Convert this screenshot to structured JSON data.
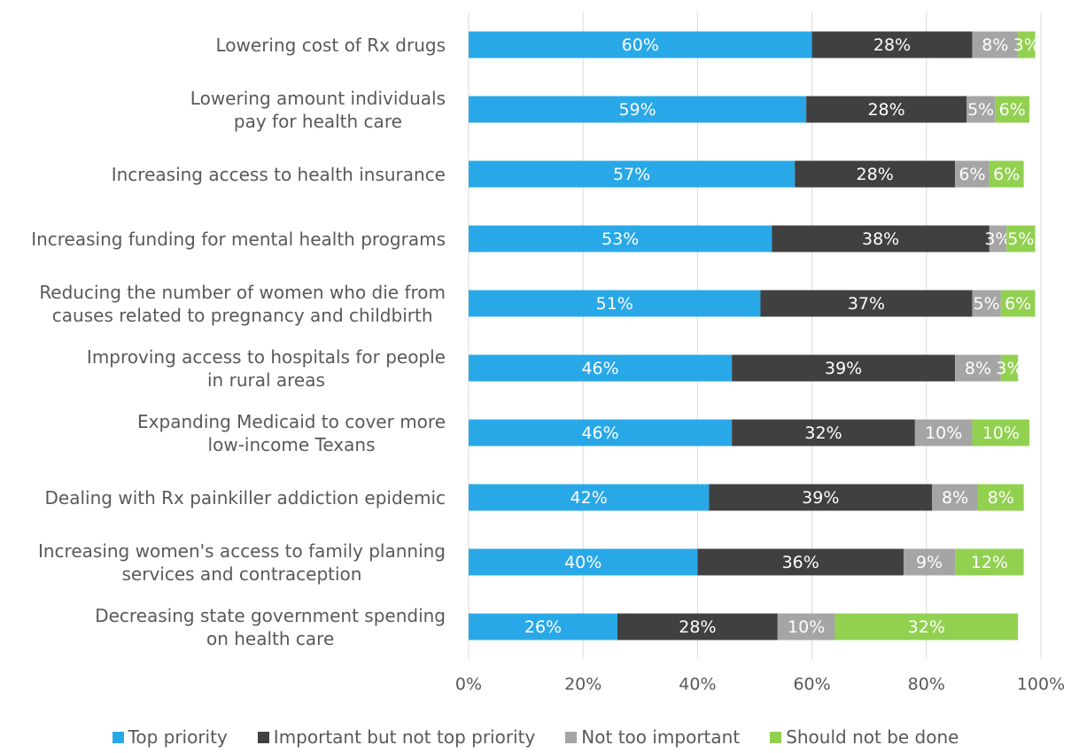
{
  "chart_data": {
    "type": "stacked-bar-horizontal",
    "categories": [
      "Lowering cost of Rx drugs",
      "Lowering amount individuals\npay for health care",
      "Increasing access to health insurance",
      "Increasing funding for mental health programs",
      "Reducing the number of women who die from\ncauses related to pregnancy and childbirth",
      "Improving access to hospitals for people\nin rural areas",
      "Expanding Medicaid to cover more\nlow-income Texans",
      "Dealing with Rx painkiller addiction epidemic",
      "Increasing women's access to family planning\nservices and contraception",
      "Decreasing state government spending\non health care"
    ],
    "series": [
      {
        "name": "Top priority",
        "color": "#29a8e8",
        "values": [
          60,
          59,
          57,
          53,
          51,
          46,
          46,
          42,
          40,
          26
        ],
        "value_labels": [
          "60%",
          "59%",
          "57%",
          "53%",
          "51%",
          "46%",
          "46%",
          "42%",
          "40%",
          "26%"
        ]
      },
      {
        "name": "Important but not top priority",
        "color": "#404040",
        "values": [
          28,
          28,
          28,
          38,
          37,
          39,
          32,
          39,
          36,
          28
        ],
        "value_labels": [
          "28%",
          "28%",
          "28%",
          "38%",
          "37%",
          "39%",
          "32%",
          "39%",
          "36%",
          "28%"
        ]
      },
      {
        "name": "Not too important",
        "color": "#a5a5a5",
        "values": [
          8,
          5,
          6,
          3,
          5,
          8,
          10,
          8,
          9,
          10
        ],
        "value_labels": [
          "8%",
          "5%",
          "6%",
          "3%",
          "5%",
          "8%",
          "10%",
          "8%",
          "9%",
          "10%"
        ]
      },
      {
        "name": "Should not be done",
        "color": "#92d050",
        "values": [
          3,
          6,
          6,
          5,
          6,
          3,
          10,
          8,
          12,
          32
        ],
        "value_labels": [
          "3%",
          "6%",
          "6%",
          "5%",
          "6%",
          "3%",
          "10%",
          "8%",
          "12%",
          "32%"
        ]
      }
    ],
    "xlim": [
      0,
      100
    ],
    "xticks": [
      {
        "value": 0,
        "label": "0%"
      },
      {
        "value": 20,
        "label": "20%"
      },
      {
        "value": 40,
        "label": "40%"
      },
      {
        "value": 60,
        "label": "60%"
      },
      {
        "value": 80,
        "label": "80%"
      },
      {
        "value": 100,
        "label": "100%"
      }
    ],
    "grid": true,
    "legend": "bottom"
  }
}
